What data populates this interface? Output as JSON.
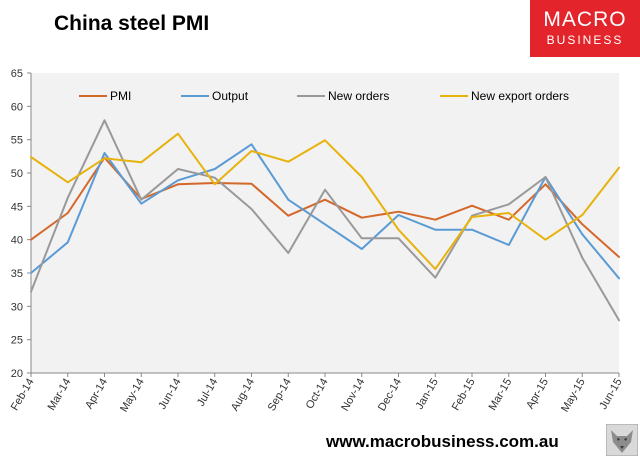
{
  "header": {
    "title": "China steel PMI"
  },
  "logo": {
    "line1": "MACRO",
    "line2": "BUSINESS"
  },
  "footer": {
    "url": "www.macrobusiness.com.au"
  },
  "chart_data": {
    "type": "line",
    "title": "China steel PMI",
    "xlabel": "",
    "ylabel": "",
    "ylim": [
      20,
      65
    ],
    "yticks": [
      20,
      25,
      30,
      35,
      40,
      45,
      50,
      55,
      60,
      65
    ],
    "grid": false,
    "legend_position": "top",
    "categories": [
      "Feb-14",
      "Mar-14",
      "Apr-14",
      "May-14",
      "Jun-14",
      "Jul-14",
      "Aug-14",
      "Sep-14",
      "Oct-14",
      "Nov-14",
      "Dec-14",
      "Jan-15",
      "Feb-15",
      "Mar-15",
      "Apr-15",
      "May-15",
      "Jun-15"
    ],
    "series": [
      {
        "name": "PMI",
        "color": "#d4682a",
        "values": [
          40.0,
          44.0,
          52.3,
          46.1,
          48.3,
          48.5,
          48.4,
          43.6,
          46.0,
          43.3,
          44.2,
          43.0,
          45.1,
          43.0,
          48.3,
          42.3,
          37.4
        ]
      },
      {
        "name": "Output",
        "color": "#5b9bd5",
        "values": [
          35.0,
          39.6,
          53.0,
          45.4,
          48.9,
          50.6,
          54.3,
          46.0,
          42.3,
          38.6,
          43.7,
          41.5,
          41.5,
          39.2,
          49.4,
          40.8,
          34.2
        ]
      },
      {
        "name": "New orders",
        "color": "#999999",
        "values": [
          32.2,
          46.3,
          57.9,
          46.0,
          50.6,
          49.3,
          44.6,
          38.0,
          47.5,
          40.2,
          40.2,
          34.3,
          43.6,
          45.3,
          49.4,
          37.3,
          27.9
        ]
      },
      {
        "name": "New export orders",
        "color": "#e8b20d",
        "values": [
          52.4,
          48.6,
          52.2,
          51.6,
          55.9,
          48.3,
          53.3,
          51.7,
          54.9,
          49.4,
          41.5,
          35.6,
          43.4,
          44.0,
          40.0,
          43.7,
          50.8
        ]
      }
    ]
  }
}
